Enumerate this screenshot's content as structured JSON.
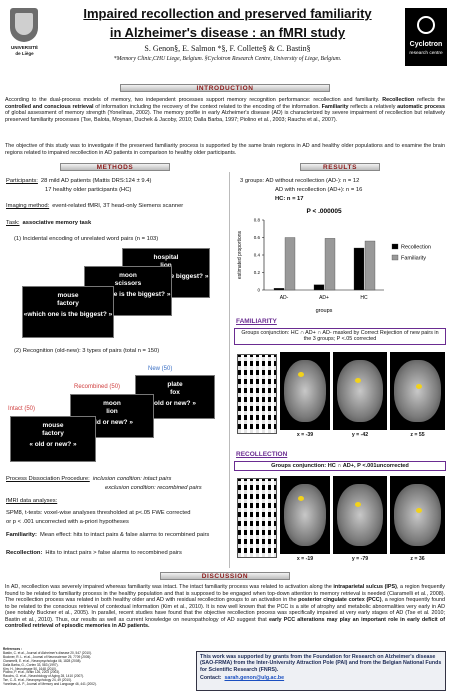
{
  "header": {
    "title": [
      "Impaired recollection and preserved familiarity",
      "in Alzheimer's disease : an fMRI study"
    ],
    "authors": "S. Genon§, E. Salmon *§, F. Collette§ & C. Bastin§",
    "affiliations": "*Memory Clinic,CHU Liege, Belgium. §Cyclotron Research Centre, University of Liege, Belgium.",
    "logo_left": [
      "UNIVERSITÉ",
      "de Liège"
    ],
    "logo_right": [
      "Cyclotron",
      "research centre"
    ]
  },
  "introduction": {
    "heading": "INTRODUCTION",
    "paragraphs": [
      [
        "According to the dual-process models of memory, two independent processes support memory recognition performance: recollection and familiarity. ",
        "Recollection",
        " reflects the ",
        "controlled and conscious retrieval",
        " of information including the recovery of the context related to the encoding of the information. ",
        "Familiarity",
        " reflects a relatively ",
        "automatic process",
        " of global assessment of memory strength (Yonelinas, 2002). The memory profile in early Alzheimer's disease (AD) is characterized by severe impairment of recollection but relatively preserved familiarity processes (Tse, Balota, Moynan, Duchek & Jacoby, 2010; Dalla Barba, 1997; Piolino et al., 2003; Rauchs et al., 2007)."
      ],
      [
        "The objective of this study was to investigate if the preserved familiarity process is supported by the same brain regions in AD and healthy older populations and to examine the brain regions related to impaired recollection in AD patients in comparison to healthy older participants."
      ]
    ]
  },
  "methods": {
    "heading": "METHODS",
    "participants": {
      "label": "Participants:",
      "lines": [
        "28 mild AD patients (Mattis DRS:124 ± 9.4)",
        "17 healthy older participants (HC)"
      ]
    },
    "imaging": {
      "label": "Imaging method:",
      "text": "event-related fMRI, 3T head-only Siemens scanner"
    },
    "task": {
      "label": "Task:",
      "text": "associative memory task"
    },
    "encoding": {
      "text": "(1) Incidental encoding of unrelated word pairs (n = 103)",
      "slides": [
        {
          "words": [
            "hospital",
            "lion"
          ],
          "question": "which one is the biggest? »"
        },
        {
          "words": [
            "moon",
            "scissors"
          ],
          "question": "which one is the biggest? »"
        },
        {
          "words": [
            "mouse",
            "factory"
          ],
          "question": "«which one is the biggest? »"
        }
      ]
    },
    "recognition": {
      "text": "(2) Recognition (old-new): 3 types of pairs (total n = 150)",
      "slides": [
        {
          "label": "New (50)",
          "words": [
            "plate",
            "fox"
          ],
          "question": "old or new? »"
        },
        {
          "label": "Recombined (50)",
          "words": [
            "moon",
            "lion"
          ],
          "question": "old or new? »"
        },
        {
          "label": "Intact (50)",
          "words": [
            "mouse",
            "factory"
          ],
          "question": "« old or new? »"
        }
      ]
    },
    "pdp": {
      "label": "Process Dissociation Procedure:",
      "inclusion": "inclusion condition: intact pairs",
      "exclusion": "exclusion condition: recombined pairs"
    },
    "analyses": {
      "label": "fMRI data analyses:",
      "lines": [
        "SPM8, t-tests: voxel-wise analyses thresholded at p<.05 FWE corrected",
        "or p < .001 uncorrected with a-priori hypotheses"
      ],
      "familiarity": {
        "label": "Familiarity:",
        "text": "Mean effect: hits to intact pairs & false alarms to recombined pairs"
      },
      "recollection": {
        "label": "Recollection:",
        "text": "Hits to intact pairs > false alarms to recombined pairs"
      }
    }
  },
  "results": {
    "heading": "RESULTS",
    "groups": [
      "3 groups: AD without recollection (AD-): n = 12",
      "AD with recollection (AD+): n = 16",
      "HC: n = 17"
    ],
    "familiarity": {
      "heading": "FAMILIARITY",
      "box": "Groups conjunction: HC ∩ AD+ ∩ AD- masked by Correct Rejection of new pairs in the 3 groups; P <.05 corrected",
      "coords": [
        "x = -39",
        "y = -42",
        "z = 55"
      ]
    },
    "recollection": {
      "heading": "RECOLLECTION",
      "box": "Groups conjunction: HC ∩ AD+, P <.001uncorrected",
      "coords": [
        "x = -19",
        "y = -79",
        "z = 36"
      ]
    }
  },
  "chart_data": {
    "type": "bar",
    "annotation": "P < .000005",
    "ylabel": "estimated proportions",
    "xlabel": "groups",
    "categories": [
      "AD-",
      "AD+",
      "HC"
    ],
    "series": [
      {
        "name": "Recollection",
        "color": "#000000",
        "values": [
          0.02,
          0.06,
          0.48
        ]
      },
      {
        "name": "Familiarity",
        "color": "#999999",
        "values": [
          0.6,
          0.59,
          0.56
        ]
      }
    ],
    "ylim": [
      0,
      0.8
    ],
    "yticks": [
      0,
      0.2,
      0.4,
      0.6,
      0.8
    ]
  },
  "discussion": {
    "heading": "DISCUSSION",
    "runs": [
      "In AD, recollection was severely impaired whereas familiarity was intact. The intact familiarity process was related to activation along the ",
      "intraparietal sulcus (IPS)",
      ", a region frequently found to be related to familiarity process in the healthy population and that is supposed to be engaged when top-down attention to memory retrieval is needed (Ciaramelli et al., 2008). The recollection process was related in both healthy older and AD with residual recollection groups to an activation in the ",
      "posterior cingulate cortex (PCC)",
      ", a region frequently found to be related to the conscious retrieval of contextual information (Kim et al., 2010). It is now well known that the PCC is a site of atrophy and metabolic abnormalities very early in AD (see notably Buckner et al., 2005). In parallel, recent studies have found that the objective recollection process was specifically impaired at very early stages of AD (Tse et al. 2010; Bastin et al., 2010). Thus, our results as well as current knowledge on neuropathology of AD suggest that ",
      "early PCC alterations may play an important role in early deficit of controlled retrieval of episodic memories in AD patients."
    ]
  },
  "references": {
    "heading": "References :",
    "items": [
      "Bastin, C. et al., Journal of Alzheimer's disease 20, 547 (2010).",
      "Buckner, R. L. et al., Journal of Neuroscience 25, 7709 (2005).",
      "Ciaramelli, E. et al., Neuropsychologia 46, 1828 (2008).",
      "Dalla Barba, G., Cortex 33, 583 (1997).",
      "Kim, H., Neuroimage 50, 1648 (2010).",
      "Piolino, P. et al., Brain 126, 2203 (2003).",
      "Rauchs, G. et al., Neurobiology of Aging 28, 1410 (2007).",
      "Tse, C.-S. et al., Neuropsychology 24, 49 (2010).",
      "Yonelinas, A. P., Journal of Memory and Language 46, 441 (2002)."
    ]
  },
  "funding": {
    "text": "This work was supported by grants from the Foundation for Research on Alzheimer's disease (SAO-FRMA) from the Inter-University Attraction Pole (PAI) and from the Belgian National Funds for Scientific Research (FNRS).",
    "contact_label": "Contact:",
    "contact": "sarah.genon@ulg.ac.be"
  }
}
